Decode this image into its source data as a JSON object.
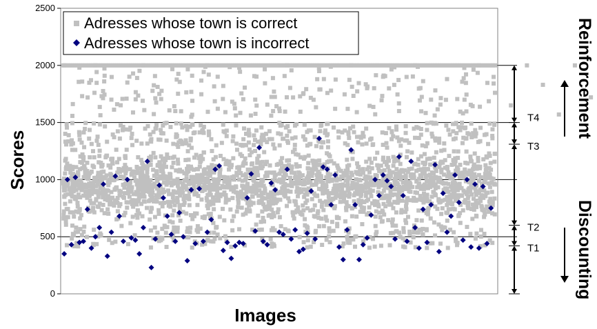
{
  "chart_data": {
    "type": "scatter",
    "xlabel": "Images",
    "ylabel": "Scores",
    "ylim": [
      0,
      2500
    ],
    "yticks": [
      0,
      500,
      1000,
      1500,
      2000,
      2500
    ],
    "grid": "horizontal at 500, 1000, 1500, 2000",
    "legend_position": "top-left",
    "series": [
      {
        "name": "Adresses whose town is correct",
        "color": "#c0c0c0",
        "marker": "square",
        "points_note": "dense cloud (~2000 points) mostly between 500 and 1500, plus a band at 2000",
        "points": [
          [
            1,
            2000
          ],
          [
            20,
            1980
          ],
          [
            40,
            2000
          ],
          [
            60,
            1700
          ],
          [
            80,
            1850
          ],
          [
            100,
            2000
          ],
          [
            120,
            1750
          ],
          [
            140,
            1600
          ],
          [
            160,
            1550
          ],
          [
            180,
            2000
          ],
          [
            200,
            1820
          ],
          [
            220,
            1980
          ],
          [
            240,
            1700
          ],
          [
            260,
            1560
          ],
          [
            280,
            2000
          ],
          [
            300,
            1750
          ],
          [
            320,
            1950
          ],
          [
            340,
            1620
          ],
          [
            360,
            2000
          ],
          [
            380,
            1800
          ],
          [
            400,
            1900
          ],
          [
            420,
            1600
          ],
          [
            440,
            2000
          ],
          [
            460,
            1700
          ],
          [
            480,
            1880
          ],
          [
            500,
            1580
          ],
          [
            520,
            2000
          ],
          [
            540,
            1760
          ],
          [
            560,
            1650
          ],
          [
            580,
            2000
          ],
          [
            600,
            1830
          ],
          [
            620,
            1570
          ],
          [
            640,
            2000
          ],
          [
            660,
            1720
          ],
          [
            680,
            1980
          ]
        ]
      },
      {
        "name": "Adresses whose town is incorrect",
        "color": "#000080",
        "marker": "diamond",
        "points": [
          [
            1,
            350
          ],
          [
            5,
            1000
          ],
          [
            10,
            430
          ],
          [
            15,
            1020
          ],
          [
            20,
            450
          ],
          [
            25,
            460
          ],
          [
            30,
            740
          ],
          [
            35,
            400
          ],
          [
            40,
            500
          ],
          [
            45,
            580
          ],
          [
            50,
            960
          ],
          [
            55,
            330
          ],
          [
            60,
            540
          ],
          [
            65,
            1030
          ],
          [
            70,
            680
          ],
          [
            75,
            460
          ],
          [
            80,
            1000
          ],
          [
            85,
            490
          ],
          [
            90,
            470
          ],
          [
            95,
            350
          ],
          [
            100,
            580
          ],
          [
            105,
            1160
          ],
          [
            110,
            230
          ],
          [
            115,
            480
          ],
          [
            120,
            950
          ],
          [
            125,
            840
          ],
          [
            130,
            680
          ],
          [
            135,
            520
          ],
          [
            140,
            460
          ],
          [
            145,
            710
          ],
          [
            150,
            500
          ],
          [
            155,
            290
          ],
          [
            160,
            910
          ],
          [
            165,
            440
          ],
          [
            170,
            920
          ],
          [
            175,
            460
          ],
          [
            180,
            540
          ],
          [
            185,
            650
          ],
          [
            190,
            1090
          ],
          [
            195,
            1120
          ],
          [
            200,
            380
          ],
          [
            205,
            450
          ],
          [
            210,
            310
          ],
          [
            215,
            420
          ],
          [
            220,
            450
          ],
          [
            225,
            440
          ],
          [
            230,
            840
          ],
          [
            235,
            1050
          ],
          [
            240,
            550
          ],
          [
            245,
            1280
          ],
          [
            250,
            460
          ],
          [
            255,
            430
          ],
          [
            260,
            970
          ],
          [
            265,
            910
          ],
          [
            270,
            540
          ],
          [
            275,
            520
          ],
          [
            280,
            1090
          ],
          [
            285,
            480
          ],
          [
            290,
            560
          ],
          [
            295,
            370
          ],
          [
            300,
            390
          ],
          [
            305,
            530
          ],
          [
            310,
            900
          ],
          [
            315,
            480
          ],
          [
            320,
            1360
          ],
          [
            325,
            1110
          ],
          [
            330,
            1090
          ],
          [
            335,
            780
          ],
          [
            340,
            1040
          ],
          [
            345,
            410
          ],
          [
            350,
            300
          ],
          [
            355,
            560
          ],
          [
            360,
            1260
          ],
          [
            365,
            780
          ],
          [
            370,
            300
          ],
          [
            375,
            430
          ],
          [
            380,
            490
          ],
          [
            385,
            690
          ],
          [
            390,
            1000
          ],
          [
            395,
            860
          ],
          [
            400,
            1040
          ],
          [
            405,
            990
          ],
          [
            410,
            940
          ],
          [
            415,
            480
          ],
          [
            420,
            1200
          ],
          [
            425,
            860
          ],
          [
            430,
            460
          ],
          [
            435,
            1160
          ],
          [
            440,
            580
          ],
          [
            445,
            400
          ],
          [
            450,
            740
          ],
          [
            455,
            450
          ],
          [
            460,
            780
          ],
          [
            465,
            1130
          ],
          [
            470,
            370
          ],
          [
            475,
            880
          ],
          [
            480,
            540
          ],
          [
            485,
            680
          ],
          [
            490,
            1040
          ],
          [
            495,
            800
          ],
          [
            500,
            470
          ],
          [
            505,
            1000
          ],
          [
            510,
            410
          ],
          [
            515,
            960
          ],
          [
            520,
            400
          ],
          [
            525,
            940
          ],
          [
            530,
            440
          ],
          [
            535,
            750
          ]
        ]
      }
    ],
    "thresholds": [
      {
        "label": "T1",
        "value": 420
      },
      {
        "label": "T2",
        "value": 600
      },
      {
        "label": "T3",
        "value": 1310
      },
      {
        "label": "T4",
        "value": 1500
      }
    ],
    "side_labels": {
      "upper": "Reinforcement",
      "lower": "Discounting"
    }
  }
}
